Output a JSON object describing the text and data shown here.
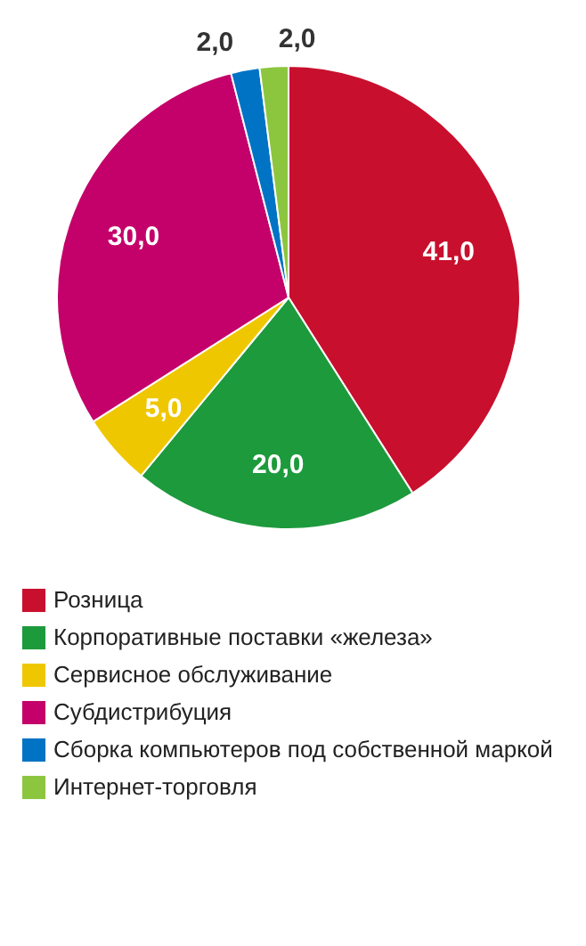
{
  "chart_data": {
    "type": "pie",
    "categories": [
      "Розница",
      "Корпоративные поставки «железа»",
      "Сервисное обслуживание",
      "Субдистрибуция",
      "Сборка компьютеров под собственной маркой",
      "Интернет-торговля"
    ],
    "values": [
      41,
      20,
      5,
      30,
      2,
      2
    ],
    "value_labels": [
      "41,0",
      "20,0",
      "5,0",
      "30,0",
      "2,0",
      "2,0"
    ],
    "colors": [
      "#c8102e",
      "#1d9a3c",
      "#efc700",
      "#c4006a",
      "#0073c4",
      "#8cc63f"
    ],
    "legend": "bottom"
  }
}
